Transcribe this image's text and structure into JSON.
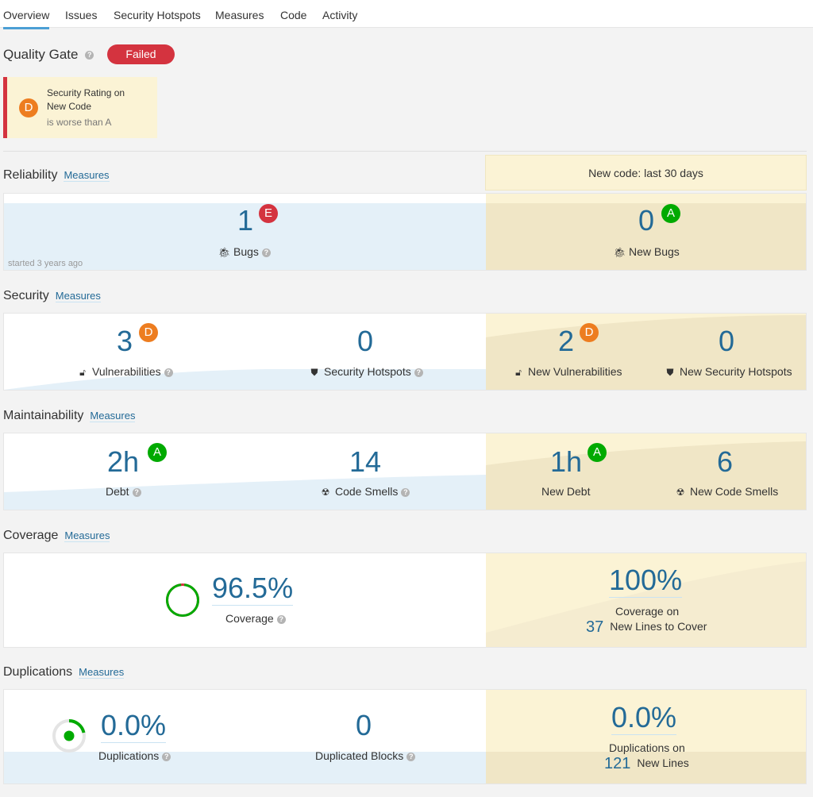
{
  "tabs": [
    "Overview",
    "Issues",
    "Security Hotspots",
    "Measures",
    "Code",
    "Activity"
  ],
  "quality_gate": {
    "title": "Quality Gate",
    "status": "Failed",
    "condition": {
      "rating": "D",
      "line1": "Security Rating on",
      "line2": "New Code",
      "line3": "is worse than A"
    }
  },
  "new_code_period": "New code: last 30 days",
  "measures_link": "Measures",
  "reliability": {
    "title": "Reliability",
    "bugs": {
      "value": "1",
      "rating": "E",
      "label": "Bugs"
    },
    "started": "started 3 years ago",
    "new_bugs": {
      "value": "0",
      "rating": "A",
      "label": "New Bugs"
    }
  },
  "security": {
    "title": "Security",
    "vulnerabilities": {
      "value": "3",
      "rating": "D",
      "label": "Vulnerabilities"
    },
    "hotspots": {
      "value": "0",
      "label": "Security Hotspots"
    },
    "new_vulnerabilities": {
      "value": "2",
      "rating": "D",
      "label": "New Vulnerabilities"
    },
    "new_hotspots": {
      "value": "0",
      "label": "New Security Hotspots"
    }
  },
  "maintainability": {
    "title": "Maintainability",
    "debt": {
      "value": "2h",
      "rating": "A",
      "label": "Debt"
    },
    "code_smells": {
      "value": "14",
      "label": "Code Smells"
    },
    "new_debt": {
      "value": "1h",
      "rating": "A",
      "label": "New Debt"
    },
    "new_code_smells": {
      "value": "6",
      "label": "New Code Smells"
    }
  },
  "coverage": {
    "title": "Coverage",
    "value": "96.5%",
    "value_fraction": 0.965,
    "label": "Coverage",
    "new_value": "100%",
    "new_label": "Coverage on",
    "new_lines": "37",
    "new_lines_label": "New Lines to Cover"
  },
  "duplications": {
    "title": "Duplications",
    "value": "0.0%",
    "label": "Duplications",
    "blocks_value": "0",
    "blocks_label": "Duplicated Blocks",
    "new_value": "0.0%",
    "new_label": "Duplications on",
    "new_lines": "121",
    "new_lines_label": "New Lines"
  },
  "colors": {
    "accent": "#4b9fd5",
    "link": "#236a97",
    "failed": "#d4333f",
    "leak_bg": "#fbf3d5",
    "rating_A": "#00aa00",
    "rating_D": "#ed7d20",
    "rating_E": "#d4333f"
  }
}
